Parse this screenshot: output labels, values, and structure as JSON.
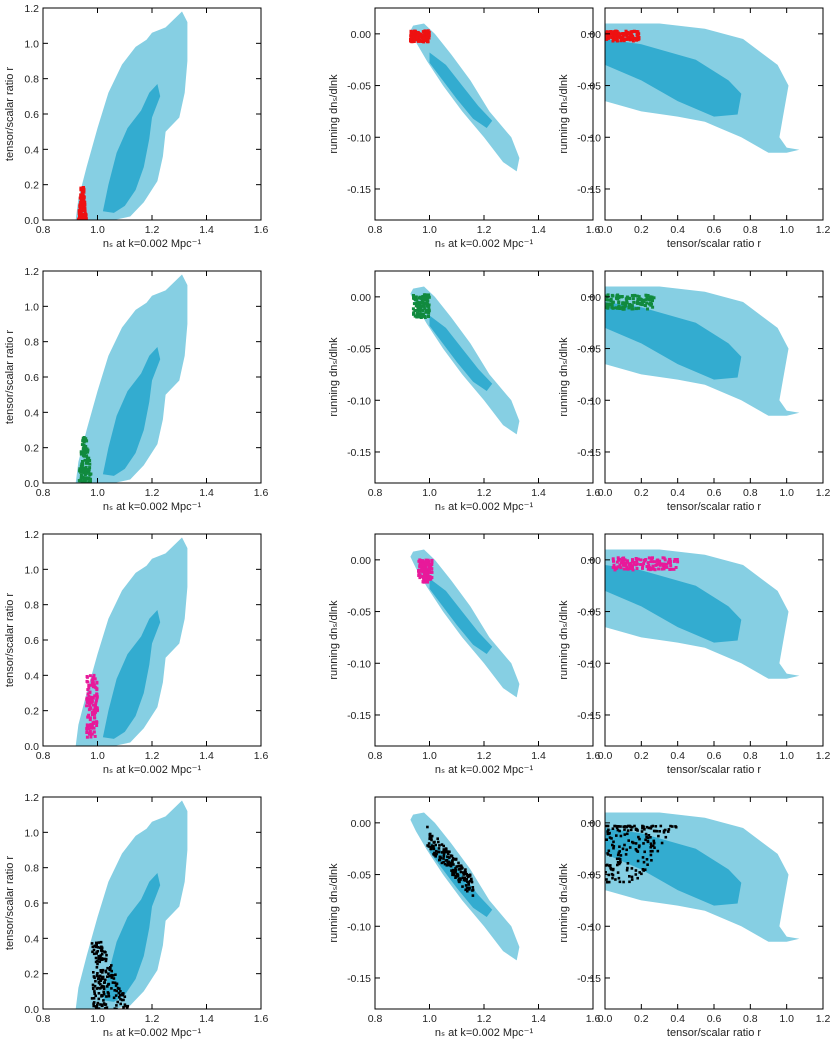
{
  "figure": {
    "description_rows": 4,
    "description_cols": 3
  },
  "colors": {
    "region_outer": "#86cfe3",
    "region_inner": "#33acd0",
    "red": "#ee1111",
    "green": "#118a3e",
    "magenta": "#e8199a",
    "black": "#000000"
  },
  "labels": {
    "ns": "nₛ at k=0.002 Mpc⁻¹",
    "r_ylabel": "tensor/scalar ratio r",
    "r_xlabel": "tensor/scalar ratio r",
    "running": "running dnₛ/dlnk"
  },
  "chart_data": [
    {
      "type": "scatter",
      "row": 1,
      "col": 1,
      "series": "red",
      "xvar": "n_s",
      "yvar": "r",
      "xlim": [
        0.8,
        1.6
      ],
      "ylim": [
        0,
        1.2
      ],
      "xticks": [
        "0.8",
        "1.0",
        "1.2",
        "1.4",
        "1.6"
      ],
      "yticks": [
        "0.0",
        "0.2",
        "0.4",
        "0.6",
        "0.8",
        "1.0",
        "1.2"
      ],
      "points_region": {
        "x": [
          0.93,
          0.96
        ],
        "y": [
          0,
          0.19
        ]
      }
    },
    {
      "type": "scatter",
      "row": 1,
      "col": 2,
      "series": "red",
      "xvar": "n_s",
      "yvar": "running",
      "xlim": [
        0.8,
        1.6
      ],
      "ylim": [
        -0.18,
        0.025
      ],
      "xticks": [
        "0.8",
        "1.0",
        "1.2",
        "1.4",
        "1.6"
      ],
      "yticks": [
        "0.00",
        "-0.05",
        "-0.10",
        "-0.15"
      ],
      "points_region": {
        "x": [
          0.93,
          1.0
        ],
        "y": [
          -0.008,
          0.003
        ]
      }
    },
    {
      "type": "scatter",
      "row": 1,
      "col": 3,
      "series": "red",
      "xvar": "r",
      "yvar": "running",
      "xlim": [
        0,
        1.2
      ],
      "ylim": [
        -0.18,
        0.025
      ],
      "xticks": [
        "0.0",
        "0.2",
        "0.4",
        "0.6",
        "0.8",
        "1.0",
        "1.2"
      ],
      "yticks": [
        "0.00",
        "-0.05",
        "-0.10",
        "-0.15"
      ],
      "points_region": {
        "x": [
          0.0,
          0.19
        ],
        "y": [
          -0.007,
          0.003
        ]
      }
    },
    {
      "type": "scatter",
      "row": 2,
      "col": 1,
      "series": "green",
      "xvar": "n_s",
      "yvar": "r",
      "xlim": [
        0.8,
        1.6
      ],
      "ylim": [
        0,
        1.2
      ],
      "xticks": [
        "0.8",
        "1.0",
        "1.2",
        "1.4",
        "1.6"
      ],
      "yticks": [
        "0.0",
        "0.2",
        "0.4",
        "0.6",
        "0.8",
        "1.0",
        "1.2"
      ],
      "points_region": {
        "x": [
          0.93,
          0.98
        ],
        "y": [
          0,
          0.26
        ]
      }
    },
    {
      "type": "scatter",
      "row": 2,
      "col": 2,
      "series": "green",
      "xvar": "n_s",
      "yvar": "running",
      "xlim": [
        0.8,
        1.6
      ],
      "ylim": [
        -0.18,
        0.025
      ],
      "xticks": [
        "0.8",
        "1.0",
        "1.2",
        "1.4",
        "1.6"
      ],
      "yticks": [
        "0.00",
        "-0.05",
        "-0.10",
        "-0.15"
      ],
      "points_region": {
        "x": [
          0.94,
          1.0
        ],
        "y": [
          -0.02,
          0.002
        ]
      }
    },
    {
      "type": "scatter",
      "row": 2,
      "col": 3,
      "series": "green",
      "xvar": "r",
      "yvar": "running",
      "xlim": [
        0,
        1.2
      ],
      "ylim": [
        -0.18,
        0.025
      ],
      "xticks": [
        "0.0",
        "0.2",
        "0.4",
        "0.6",
        "0.8",
        "1.0",
        "1.2"
      ],
      "yticks": [
        "0.00",
        "-0.05",
        "-0.10",
        "-0.15"
      ],
      "points_region": {
        "x": [
          0.0,
          0.27
        ],
        "y": [
          -0.012,
          0.002
        ]
      }
    },
    {
      "type": "scatter",
      "row": 3,
      "col": 1,
      "series": "magenta",
      "xvar": "n_s",
      "yvar": "r",
      "xlim": [
        0.8,
        1.6
      ],
      "ylim": [
        0,
        1.2
      ],
      "xticks": [
        "0.8",
        "1.0",
        "1.2",
        "1.4",
        "1.6"
      ],
      "yticks": [
        "0.0",
        "0.2",
        "0.4",
        "0.6",
        "0.8",
        "1.0",
        "1.2"
      ],
      "points_region": {
        "x": [
          0.96,
          1.0
        ],
        "y": [
          0.05,
          0.4
        ]
      }
    },
    {
      "type": "scatter",
      "row": 3,
      "col": 2,
      "series": "magenta",
      "xvar": "n_s",
      "yvar": "running",
      "xlim": [
        0.8,
        1.6
      ],
      "ylim": [
        -0.18,
        0.025
      ],
      "xticks": [
        "0.8",
        "1.0",
        "1.2",
        "1.4",
        "1.6"
      ],
      "yticks": [
        "0.00",
        "-0.05",
        "-0.10",
        "-0.15"
      ],
      "points_region": {
        "x": [
          0.96,
          1.01
        ],
        "y": [
          -0.022,
          0.0
        ]
      }
    },
    {
      "type": "scatter",
      "row": 3,
      "col": 3,
      "series": "magenta",
      "xvar": "r",
      "yvar": "running",
      "xlim": [
        0,
        1.2
      ],
      "ylim": [
        -0.18,
        0.025
      ],
      "xticks": [
        "0.0",
        "0.2",
        "0.4",
        "0.6",
        "0.8",
        "1.0",
        "1.2"
      ],
      "yticks": [
        "0.00",
        "-0.05",
        "-0.10",
        "-0.15"
      ],
      "points_region": {
        "x": [
          0.04,
          0.41
        ],
        "y": [
          -0.01,
          0.002
        ]
      }
    },
    {
      "type": "scatter",
      "row": 4,
      "col": 1,
      "series": "black",
      "xvar": "n_s",
      "yvar": "r",
      "xlim": [
        0.8,
        1.6
      ],
      "ylim": [
        0,
        1.2
      ],
      "xticks": [
        "0.8",
        "1.0",
        "1.2",
        "1.4",
        "1.6"
      ],
      "yticks": [
        "0.0",
        "0.2",
        "0.4",
        "0.6",
        "0.8",
        "1.0",
        "1.2"
      ],
      "points_region": {
        "x": [
          0.98,
          1.12
        ],
        "y": [
          0,
          0.38
        ]
      }
    },
    {
      "type": "scatter",
      "row": 4,
      "col": 2,
      "series": "black",
      "xvar": "n_s",
      "yvar": "running",
      "xlim": [
        0.8,
        1.6
      ],
      "ylim": [
        -0.18,
        0.025
      ],
      "xticks": [
        "0.8",
        "1.0",
        "1.2",
        "1.4",
        "1.6"
      ],
      "yticks": [
        "0.00",
        "-0.05",
        "-0.10",
        "-0.15"
      ],
      "points_region": {
        "x": [
          0.99,
          1.16
        ],
        "y": [
          -0.07,
          -0.003
        ]
      }
    },
    {
      "type": "scatter",
      "row": 4,
      "col": 3,
      "series": "black",
      "xvar": "r",
      "yvar": "running",
      "xlim": [
        0,
        1.2
      ],
      "ylim": [
        -0.18,
        0.025
      ],
      "xticks": [
        "0.0",
        "0.2",
        "0.4",
        "0.6",
        "0.8",
        "1.0",
        "1.2"
      ],
      "yticks": [
        "0.00",
        "-0.05",
        "-0.10",
        "-0.15"
      ],
      "points_region": {
        "x": [
          0.0,
          0.4
        ],
        "y": [
          -0.06,
          -0.003
        ]
      }
    }
  ]
}
